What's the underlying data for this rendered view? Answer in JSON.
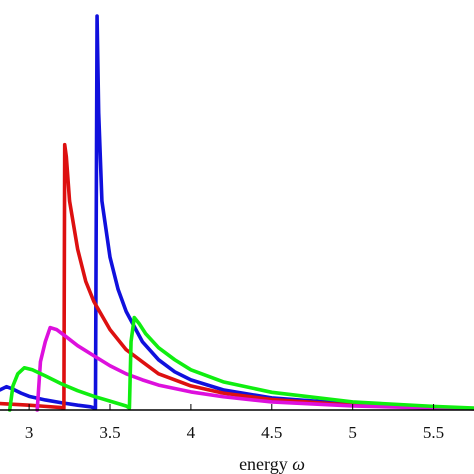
{
  "chart_data": {
    "type": "line",
    "xlabel": "energy",
    "xlabel_symbol": "ω",
    "xlim": [
      2.82,
      5.75
    ],
    "ylim": [
      0,
      1.0
    ],
    "x_ticks": [
      3,
      3.5,
      4,
      4.5,
      5,
      5.5
    ],
    "x_tick_labels": [
      "3",
      "3.5",
      "4",
      "4.5",
      "5",
      "5.5"
    ],
    "grid": false,
    "legend": "none",
    "series": [
      {
        "color": "#1010dd",
        "x": [
          2.82,
          2.86,
          2.9,
          2.95,
          3.0,
          3.1,
          3.2,
          3.3,
          3.38,
          3.41,
          3.42,
          3.43,
          3.45,
          3.5,
          3.55,
          3.6,
          3.7,
          3.8,
          3.9,
          4.0,
          4.2,
          4.5,
          5.0,
          5.5,
          5.75
        ],
        "y": [
          0.05,
          0.058,
          0.052,
          0.042,
          0.034,
          0.025,
          0.018,
          0.012,
          0.008,
          0.004,
          0.98,
          0.74,
          0.52,
          0.38,
          0.3,
          0.245,
          0.17,
          0.125,
          0.095,
          0.075,
          0.05,
          0.03,
          0.015,
          0.007,
          0.004
        ]
      },
      {
        "color": "#dd1010",
        "x": [
          2.82,
          3.0,
          3.1,
          3.2,
          3.215,
          3.22,
          3.23,
          3.25,
          3.3,
          3.35,
          3.4,
          3.5,
          3.6,
          3.7,
          3.8,
          4.0,
          4.2,
          4.5,
          5.0,
          5.5,
          5.75
        ],
        "y": [
          0.016,
          0.012,
          0.009,
          0.006,
          0.004,
          0.66,
          0.63,
          0.52,
          0.4,
          0.32,
          0.27,
          0.2,
          0.15,
          0.12,
          0.09,
          0.06,
          0.042,
          0.026,
          0.012,
          0.006,
          0.003
        ]
      },
      {
        "color": "#dd10dd",
        "x": [
          3.05,
          3.07,
          3.1,
          3.13,
          3.17,
          3.22,
          3.3,
          3.4,
          3.5,
          3.6,
          3.7,
          3.8,
          4.0,
          4.2,
          4.5,
          5.0,
          5.5,
          5.75
        ],
        "y": [
          0.0,
          0.12,
          0.17,
          0.205,
          0.2,
          0.185,
          0.16,
          0.135,
          0.11,
          0.09,
          0.075,
          0.062,
          0.045,
          0.033,
          0.02,
          0.01,
          0.005,
          0.003
        ]
      },
      {
        "color": "#10ee10",
        "x": [
          2.88,
          2.9,
          2.93,
          2.97,
          3.02,
          3.1,
          3.2,
          3.3,
          3.4,
          3.5,
          3.6,
          3.62,
          3.63,
          3.65,
          3.68,
          3.72,
          3.8,
          3.9,
          4.0,
          4.2,
          4.5,
          5.0,
          5.5,
          5.75
        ],
        "y": [
          0.0,
          0.06,
          0.09,
          0.105,
          0.1,
          0.085,
          0.065,
          0.048,
          0.034,
          0.022,
          0.01,
          0.005,
          0.17,
          0.23,
          0.215,
          0.19,
          0.155,
          0.125,
          0.1,
          0.07,
          0.044,
          0.02,
          0.009,
          0.005
        ]
      }
    ]
  }
}
